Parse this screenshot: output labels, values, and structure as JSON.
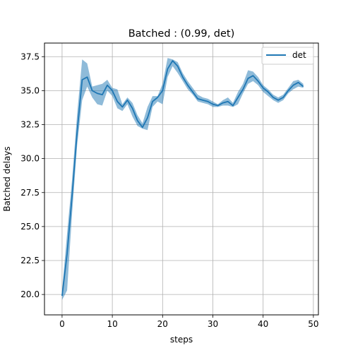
{
  "chart_data": {
    "type": "line",
    "title": "Batched : (0.99, det)",
    "xlabel": "steps",
    "ylabel": "Batched delays",
    "xlim": [
      -3.5,
      51
    ],
    "ylim": [
      18.5,
      38.5
    ],
    "xticks": [
      0,
      10,
      20,
      30,
      40,
      50
    ],
    "yticks": [
      20.0,
      22.5,
      25.0,
      27.5,
      30.0,
      32.5,
      35.0,
      37.5
    ],
    "xtick_labels": [
      "0",
      "10",
      "20",
      "30",
      "40",
      "50"
    ],
    "ytick_labels": [
      "20.0",
      "22.5",
      "25.0",
      "27.5",
      "30.0",
      "32.5",
      "35.0",
      "37.5"
    ],
    "grid": true,
    "legend_position": "top-right",
    "series": [
      {
        "name": "det",
        "color": "#1f77b4",
        "x": [
          0,
          1,
          2,
          3,
          4,
          5,
          6,
          7,
          8,
          9,
          10,
          11,
          12,
          13,
          14,
          15,
          16,
          17,
          18,
          19,
          20,
          21,
          22,
          23,
          24,
          25,
          26,
          27,
          28,
          29,
          30,
          31,
          32,
          33,
          34,
          35,
          36,
          37,
          38,
          39,
          40,
          41,
          42,
          43,
          44,
          45,
          46,
          47,
          48
        ],
        "y": [
          19.9,
          23.0,
          27.3,
          32.0,
          35.8,
          36.0,
          35.0,
          34.8,
          34.7,
          35.4,
          35.0,
          34.2,
          33.8,
          34.3,
          33.7,
          32.8,
          32.3,
          33.0,
          34.2,
          34.5,
          35.0,
          36.6,
          37.2,
          36.8,
          36.0,
          35.4,
          34.9,
          34.4,
          34.3,
          34.2,
          34.0,
          33.9,
          34.1,
          34.2,
          33.9,
          34.5,
          35.1,
          35.9,
          36.1,
          35.7,
          35.2,
          34.9,
          34.5,
          34.3,
          34.5,
          35.0,
          35.4,
          35.6,
          35.3
        ],
        "lower": [
          19.6,
          20.3,
          26.0,
          31.0,
          34.3,
          35.3,
          34.5,
          34.0,
          33.9,
          35.0,
          34.6,
          33.7,
          33.5,
          34.0,
          33.1,
          32.4,
          32.2,
          32.1,
          33.8,
          34.2,
          34.0,
          36.0,
          36.8,
          36.3,
          35.7,
          35.1,
          34.7,
          34.2,
          34.1,
          34.0,
          33.8,
          33.8,
          33.9,
          33.9,
          33.8,
          34.0,
          34.8,
          35.5,
          35.7,
          35.4,
          34.9,
          34.6,
          34.3,
          34.1,
          34.3,
          34.8,
          35.1,
          35.3,
          35.2
        ],
        "upper": [
          20.3,
          24.5,
          28.5,
          33.3,
          37.3,
          37.0,
          35.3,
          35.4,
          35.5,
          35.8,
          35.2,
          35.1,
          34.0,
          34.5,
          34.1,
          33.2,
          32.6,
          33.8,
          34.6,
          34.6,
          35.5,
          37.4,
          37.3,
          37.1,
          36.3,
          35.7,
          35.2,
          34.7,
          34.5,
          34.4,
          34.2,
          34.0,
          34.3,
          34.5,
          34.1,
          34.9,
          35.5,
          36.5,
          36.4,
          36.0,
          35.4,
          35.1,
          34.7,
          34.5,
          34.7,
          35.2,
          35.7,
          35.8,
          35.5
        ]
      }
    ]
  }
}
